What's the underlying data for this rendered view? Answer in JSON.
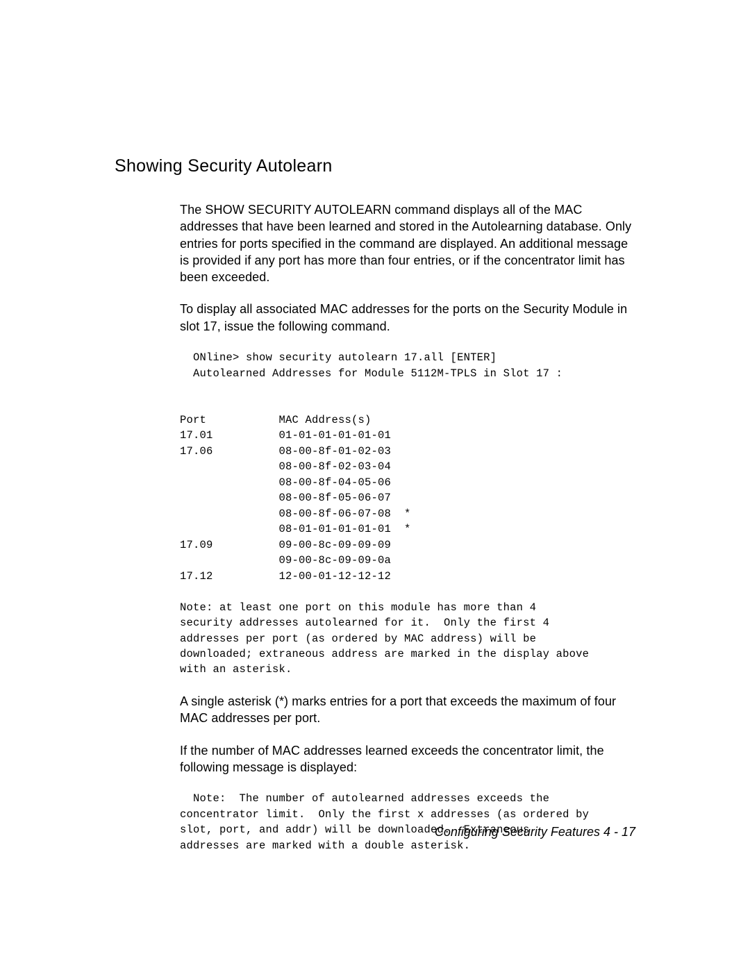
{
  "heading": "Showing Security Autolearn",
  "para1": "The SHOW SECURITY AUTOLEARN command displays all of the MAC addresses that have been learned and stored in the Autolearning database. Only entries for ports specified in the command are displayed. An additional message is provided if any port has more than four entries, or if the concentrator limit has been exceeded.",
  "para2": "To display all associated MAC addresses for the ports on the Security Module in slot 17, issue the following command.",
  "codeblock1": "  ONline> show security autolearn 17.all [ENTER]\n  Autolearned Addresses for Module 5112M-TPLS in Slot 17 :\n\n\nPort           MAC Address(s)\n17.01          01-01-01-01-01-01\n17.06          08-00-8f-01-02-03\n               08-00-8f-02-03-04\n               08-00-8f-04-05-06\n               08-00-8f-05-06-07\n               08-00-8f-06-07-08  *\n               08-01-01-01-01-01  *\n17.09          09-00-8c-09-09-09\n               09-00-8c-09-09-0a\n17.12          12-00-01-12-12-12\n\nNote: at least one port on this module has more than 4\nsecurity addresses autolearned for it.  Only the first 4\naddresses per port (as ordered by MAC address) will be\ndownloaded; extraneous address are marked in the display above\nwith an asterisk.",
  "para3": "A single asterisk (*) marks entries for a port that exceeds the maximum of four MAC addresses per port.",
  "para4": "If the number of MAC addresses learned exceeds the concentrator limit, the following message is displayed:",
  "codeblock2": "  Note:  The number of autolearned addresses exceeds the\nconcentrator limit.  Only the first x addresses (as ordered by\nslot, port, and addr) will be downloaded.  Extraneous\naddresses are marked with a double asterisk.",
  "footer": "Configuring Security Features  4 - 17"
}
